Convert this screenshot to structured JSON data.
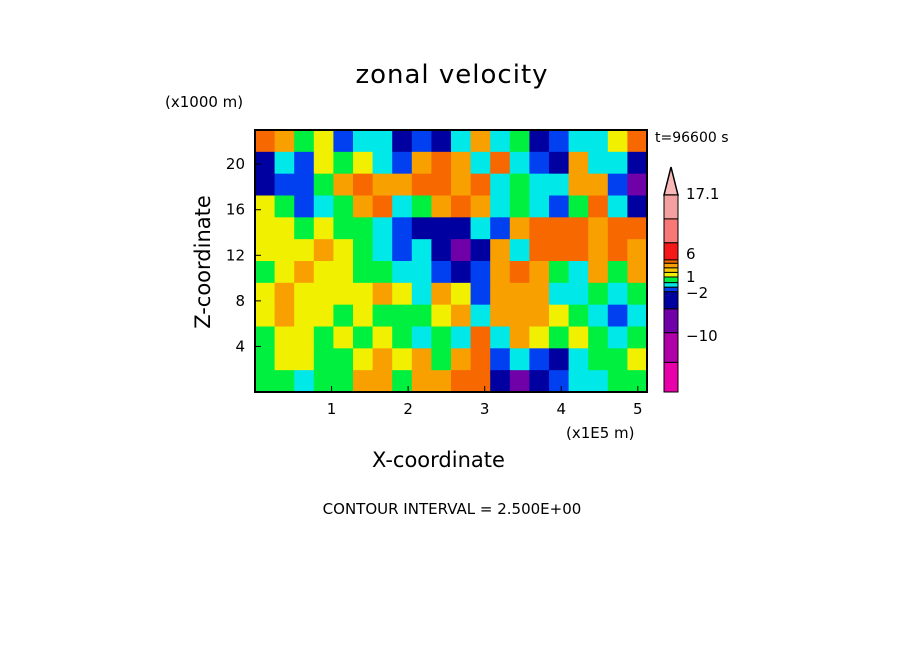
{
  "chart_data": {
    "type": "heatmap",
    "title": "zonal velocity",
    "xlabel": "X-coordinate",
    "ylabel": "Z-coordinate",
    "x_unit": "(x1E5 m)",
    "y_unit": "(x1000 m)",
    "time_label": "t=96600 s",
    "footer": "CONTOUR INTERVAL = 2.500E+00",
    "xlim": [
      0,
      5.12
    ],
    "ylim": [
      0,
      23
    ],
    "xticks": [
      "1",
      "2",
      "3",
      "4",
      "5"
    ],
    "yticks": [
      "4",
      "8",
      "12",
      "16",
      "20"
    ],
    "colorbar": {
      "labels": [
        {
          "text": "17.1",
          "value": 17.1
        },
        {
          "text": "6",
          "value": 6
        },
        {
          "text": "1",
          "value": 1
        },
        {
          "text": "−2",
          "value": -2
        },
        {
          "text": "−10",
          "value": -10
        }
      ],
      "bands": [
        {
          "min": 17.1,
          "color": "#f8b8b8"
        },
        {
          "min": 12.5,
          "color": "#f4a0a0"
        },
        {
          "min": 9,
          "color": "#f87878"
        },
        {
          "min": 6,
          "color": "#f41818"
        },
        {
          "min": 3,
          "color": "#f86800"
        },
        {
          "min": 1.5,
          "color": "#f8a000"
        },
        {
          "min": 1,
          "color": "#f8c800"
        },
        {
          "min": -0.5,
          "color": "#f0f000"
        },
        {
          "min": -1.5,
          "color": "#00f040"
        },
        {
          "min": -2.5,
          "color": "#00e8e8"
        },
        {
          "min": -5,
          "color": "#0040f0"
        },
        {
          "min": -7.5,
          "color": "#0000a0"
        },
        {
          "min": -10,
          "color": "#7000a8"
        },
        {
          "min": -12.5,
          "color": "#b000a8"
        },
        {
          "min": -99,
          "color": "#e800a8"
        }
      ]
    },
    "grid_rows_top_to_bottom": [
      [
        5,
        2,
        -1,
        0,
        -4,
        -2,
        -2,
        -6,
        -4,
        -6,
        -2,
        2,
        -2,
        -1,
        -6,
        -4,
        -2,
        -2,
        0,
        5
      ],
      [
        -6,
        -2,
        -4,
        0,
        -1,
        0,
        -2,
        -4,
        2,
        5,
        2,
        -2,
        5,
        -2,
        -4,
        -6,
        2,
        -2,
        -2,
        -6
      ],
      [
        -6,
        -4,
        -4,
        -1,
        2,
        5,
        2,
        2,
        5,
        5,
        2,
        5,
        -2,
        -1,
        -2,
        -2,
        2,
        2,
        -4,
        -9
      ],
      [
        0,
        -1,
        -4,
        -2,
        -1,
        2,
        5,
        -2,
        -1,
        2,
        5,
        2,
        -2,
        -1,
        -2,
        -4,
        -1,
        5,
        -2,
        -6
      ],
      [
        0,
        0,
        -1,
        0,
        -1,
        -1,
        -2,
        -4,
        -6,
        -6,
        -6,
        -2,
        -4,
        2,
        5,
        5,
        5,
        2,
        5,
        5
      ],
      [
        0,
        0,
        0,
        2,
        0,
        -1,
        -2,
        -4,
        -2,
        -6,
        -9,
        -6,
        2,
        -2,
        5,
        5,
        5,
        2,
        5,
        2
      ],
      [
        -1,
        0,
        2,
        0,
        0,
        -1,
        -1,
        -2,
        -2,
        -4,
        -6,
        -4,
        2,
        5,
        2,
        -1,
        -2,
        2,
        -1,
        2
      ],
      [
        0,
        2,
        0,
        0,
        0,
        0,
        2,
        0,
        -2,
        2,
        0,
        -4,
        2,
        2,
        2,
        -2,
        -2,
        -1,
        -2,
        -1
      ],
      [
        0,
        2,
        0,
        0,
        -1,
        0,
        -1,
        -1,
        -1,
        0,
        2,
        -2,
        2,
        2,
        2,
        0,
        -1,
        -2,
        -4,
        -2
      ],
      [
        -1,
        0,
        0,
        -1,
        0,
        -1,
        0,
        -1,
        -2,
        -1,
        -2,
        5,
        -2,
        2,
        0,
        -1,
        0,
        -1,
        -2,
        -1
      ],
      [
        -1,
        0,
        0,
        -1,
        -1,
        0,
        2,
        0,
        2,
        -1,
        2,
        5,
        -4,
        -2,
        -4,
        -6,
        -2,
        -1,
        -1,
        0
      ],
      [
        -1,
        -1,
        -2,
        -1,
        -1,
        2,
        2,
        -1,
        2,
        2,
        5,
        5,
        -6,
        -9,
        -6,
        -4,
        -2,
        -2,
        -1,
        -1
      ]
    ]
  }
}
